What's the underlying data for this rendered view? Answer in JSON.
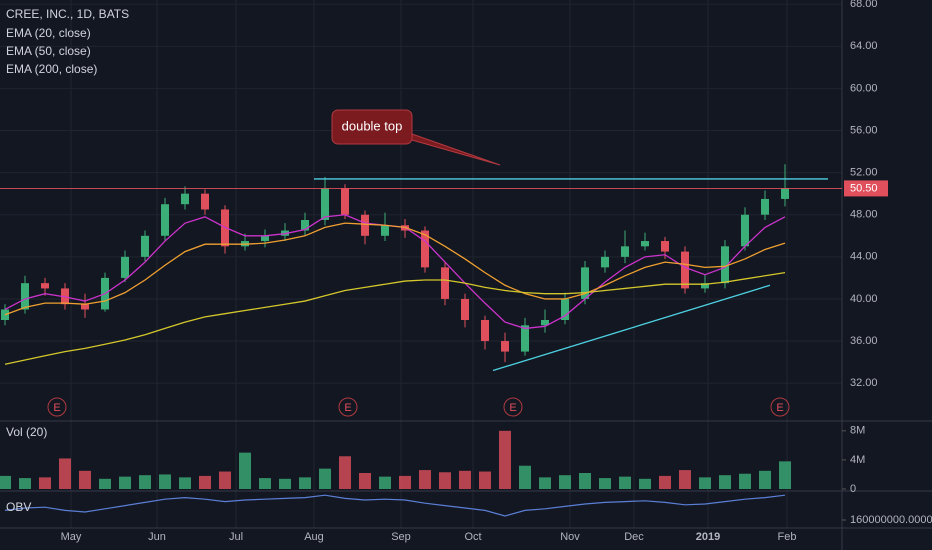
{
  "chart_data": [
    {
      "type": "candlestick",
      "title": "CREE, INC., 1D, BATS",
      "open": [
        38,
        39,
        41.5,
        41,
        39.5,
        39,
        42,
        44,
        46,
        49,
        50,
        48.5,
        45,
        45.5,
        46,
        46.5,
        47.5,
        50.5,
        48,
        46,
        47,
        46.5,
        43,
        40,
        38,
        36,
        35,
        37.5,
        38,
        40,
        43,
        44,
        45,
        45.5,
        44.5,
        41,
        41.5,
        45,
        48,
        49.5
      ],
      "high": [
        39.5,
        42.2,
        42,
        41.5,
        40.5,
        42.5,
        44.6,
        46.5,
        49.6,
        50.7,
        50.4,
        48.9,
        46.2,
        46.6,
        47.2,
        48.2,
        51.6,
        50.9,
        48.4,
        48.2,
        47.6,
        46.9,
        43.5,
        40.5,
        38.4,
        36.8,
        38.2,
        39,
        40.6,
        43.6,
        44.6,
        46.5,
        46.3,
        45.9,
        45,
        42.3,
        45.6,
        48.7,
        50.3,
        52.8
      ],
      "low": [
        37.5,
        38.6,
        40.3,
        39,
        38.2,
        38.8,
        41.6,
        43.6,
        45.5,
        48.5,
        48,
        44.3,
        44.6,
        44.9,
        45.5,
        46,
        47,
        47.6,
        45.2,
        45.5,
        45.8,
        42.5,
        39.4,
        37.3,
        35.2,
        34,
        34.6,
        36.8,
        37.6,
        39.5,
        42.5,
        43.4,
        44.6,
        43.8,
        40.5,
        40.6,
        41,
        44.6,
        47.5,
        48.8
      ],
      "close": [
        39,
        41.5,
        41,
        39.5,
        39,
        42,
        44,
        46,
        49,
        50,
        48.5,
        45,
        45.5,
        46,
        46.5,
        47.5,
        50.5,
        48,
        46,
        47,
        46.5,
        43,
        40,
        38,
        36,
        35,
        37.5,
        38,
        40,
        43,
        44,
        45,
        45.5,
        44.5,
        41,
        41.5,
        45,
        48,
        49.5,
        50.5
      ],
      "up_color": "#3cae78",
      "down_color": "#e0505c",
      "series": [
        {
          "name": "EMA (20, close)",
          "color": "#cc33cc",
          "values": [
            39,
            40,
            40.5,
            40.2,
            39.8,
            40.5,
            41.8,
            43.5,
            45.5,
            47.2,
            47.8,
            46.8,
            46,
            46,
            46.2,
            46.6,
            47.8,
            48,
            47.2,
            47,
            46.8,
            45.5,
            43.5,
            41.5,
            39.6,
            37.8,
            37.2,
            37.4,
            38.4,
            40,
            41.6,
            43,
            44,
            44.2,
            43,
            42.3,
            43,
            45,
            46.8,
            47.8
          ]
        },
        {
          "name": "EMA (50, close)",
          "color": "#f0a030",
          "values": [
            38.5,
            39.2,
            39.6,
            39.6,
            39.5,
            39.8,
            40.6,
            41.8,
            43.2,
            44.5,
            45.2,
            45.2,
            45.2,
            45.3,
            45.6,
            46,
            46.8,
            47.2,
            47.1,
            47,
            46.8,
            46.1,
            45,
            43.8,
            42.5,
            41.3,
            40.5,
            40,
            40,
            40.5,
            41.3,
            42.2,
            43,
            43.5,
            43.3,
            43,
            43.1,
            43.8,
            44.7,
            45.3
          ]
        },
        {
          "name": "EMA (200, close)",
          "color": "#d4c72b",
          "values": [
            33.8,
            34.2,
            34.6,
            35,
            35.3,
            35.7,
            36.1,
            36.6,
            37.2,
            37.8,
            38.3,
            38.6,
            38.9,
            39.2,
            39.5,
            39.8,
            40.3,
            40.8,
            41.1,
            41.4,
            41.7,
            41.8,
            41.8,
            41.5,
            41.1,
            40.8,
            40.6,
            40.5,
            40.5,
            40.6,
            40.8,
            41,
            41.2,
            41.4,
            41.4,
            41.4,
            41.6,
            41.9,
            42.2,
            42.5
          ]
        }
      ],
      "xlim": [
        -0.25,
        41.85
      ],
      "xticks": [
        {
          "value": 3.3,
          "label": "May"
        },
        {
          "value": 7.6,
          "label": "Jun"
        },
        {
          "value": 11.55,
          "label": "Jul"
        },
        {
          "value": 15.45,
          "label": "Aug"
        },
        {
          "value": 19.8,
          "label": "Sep"
        },
        {
          "value": 23.4,
          "label": "Oct"
        },
        {
          "value": 28.25,
          "label": "Nov"
        },
        {
          "value": 31.45,
          "label": "Dec"
        },
        {
          "value": 35.15,
          "label": "2019"
        },
        {
          "value": 39.1,
          "label": "Feb"
        }
      ],
      "ylim": [
        28.5,
        68.4
      ],
      "yticks": [
        {
          "value": 32,
          "label": "32.00"
        },
        {
          "value": 36,
          "label": "36.00"
        },
        {
          "value": 40,
          "label": "40.00"
        },
        {
          "value": 44,
          "label": "44.00"
        },
        {
          "value": 48,
          "label": "48.00"
        },
        {
          "value": 52,
          "label": "52.00"
        },
        {
          "value": 56,
          "label": "56.00"
        },
        {
          "value": 60,
          "label": "60.00"
        },
        {
          "value": 64,
          "label": "64.00"
        },
        {
          "value": 68,
          "label": "68.00"
        }
      ],
      "last_price": {
        "value": 50.5,
        "label": "50.50"
      },
      "annotation": "double top",
      "drawings": [
        {
          "x": [
            15.45,
            41.15
          ],
          "y": [
            51.4,
            51.4
          ],
          "color": "#4dd0e1"
        },
        {
          "x": [
            24.4,
            38.25
          ],
          "y": [
            33.2,
            41.3
          ],
          "color": "#4dd0e1"
        }
      ],
      "earnings": [
        {
          "x": 2.6,
          "label": "E"
        },
        {
          "x": 17.15,
          "label": "E"
        },
        {
          "x": 25.4,
          "label": "E"
        },
        {
          "x": 38.75,
          "label": "E"
        }
      ],
      "grid": true
    },
    {
      "type": "bar",
      "title": "Vol (20)",
      "values": [
        1.8,
        1.5,
        1.6,
        4.2,
        2.5,
        1.4,
        1.7,
        1.9,
        2,
        1.6,
        1.8,
        2.4,
        5,
        1.5,
        1.4,
        1.6,
        2.8,
        4.5,
        2.2,
        1.7,
        1.8,
        2.6,
        2.3,
        2.5,
        2.4,
        8,
        3.2,
        1.6,
        1.9,
        2.2,
        1.5,
        1.7,
        1.4,
        1.8,
        2.6,
        1.6,
        1.9,
        2.1,
        2.5,
        3.8
      ],
      "ylim": [
        0,
        8.8
      ],
      "yticks": [
        {
          "value": 0,
          "label": "0"
        },
        {
          "value": 4,
          "label": "4M"
        },
        {
          "value": 8,
          "label": "8M"
        }
      ]
    },
    {
      "type": "line",
      "title": "OBV",
      "color": "#5b7fd6",
      "values": [
        172000000,
        175000000,
        176000000,
        172000000,
        170000000,
        174000000,
        178000000,
        182000000,
        186000000,
        188000000,
        186000000,
        183000000,
        185000000,
        186000000,
        187000000,
        188000000,
        191000000,
        187000000,
        185000000,
        186000000,
        185000000,
        181000000,
        178000000,
        175000000,
        172000000,
        165000000,
        172000000,
        174000000,
        177000000,
        180000000,
        182000000,
        183000000,
        184000000,
        182000000,
        179000000,
        180000000,
        183000000,
        186000000,
        188000000,
        191000000
      ],
      "ylim": [
        150000000,
        195000000
      ],
      "yticks": [
        {
          "value": 160000000,
          "label": "160000000.0000"
        }
      ]
    }
  ]
}
